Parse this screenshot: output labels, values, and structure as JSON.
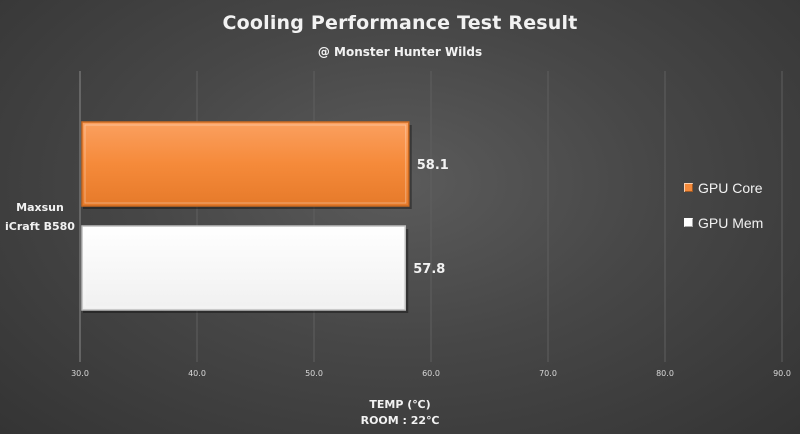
{
  "chart_data": {
    "type": "bar",
    "orientation": "horizontal",
    "title": "Cooling Performance Test Result",
    "subtitle": "@ Monster Hunter Wilds",
    "categories": [
      "Maxsun iCraft B580"
    ],
    "category_lines": [
      "Maxsun",
      "iCraft B580"
    ],
    "series": [
      {
        "name": "GPU Core",
        "values": [
          58.1
        ],
        "color": "#f58a3a"
      },
      {
        "name": "GPU Mem",
        "values": [
          57.8
        ],
        "color": "#ffffff"
      }
    ],
    "xlabel_lines": [
      "TEMP (℃)",
      "ROOM : 22℃"
    ],
    "xlim": [
      30.0,
      90.0
    ],
    "xticks": [
      "30.0",
      "40.0",
      "50.0",
      "60.0",
      "70.0",
      "80.0",
      "90.0"
    ],
    "grid": true,
    "legend_position": "right"
  }
}
